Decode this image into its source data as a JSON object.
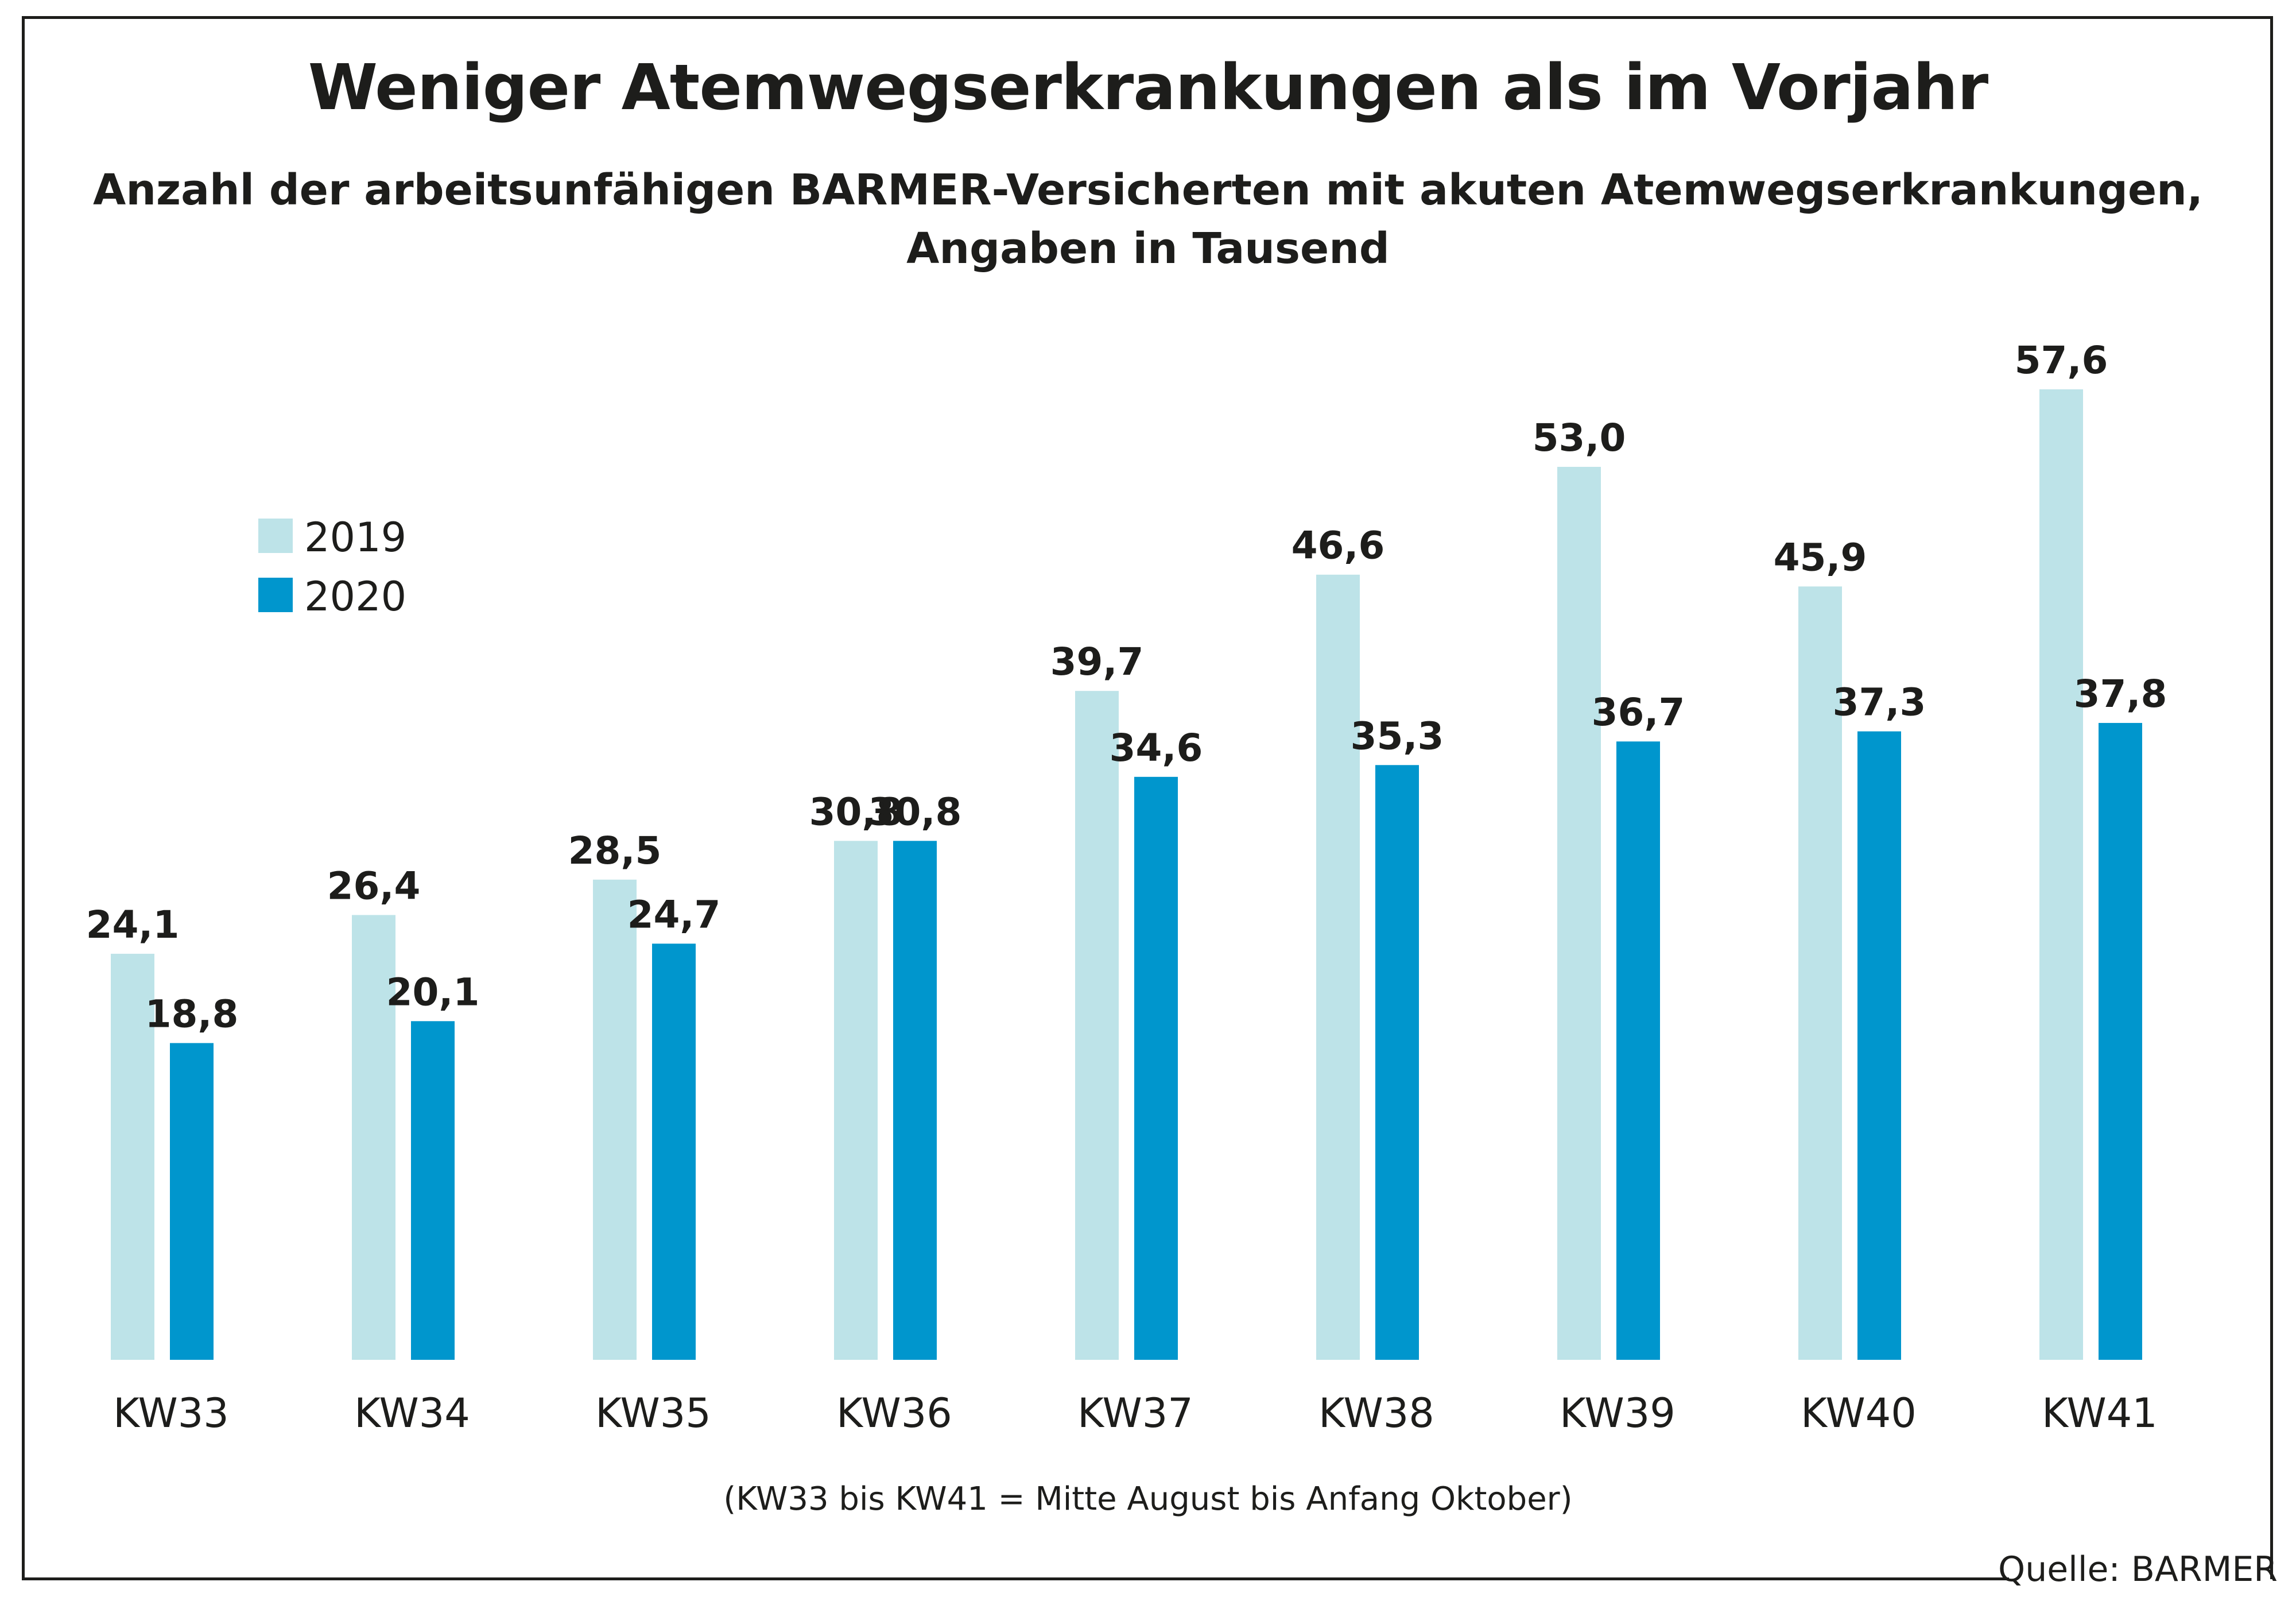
{
  "title": "Weniger Atemwegserkrankungen als im Vorjahr",
  "subtitle_line1": "Anzahl der arbeitsunfähigen BARMER-Versicherten mit akuten Atemwegserkrankungen,",
  "subtitle_line2": "Angaben in Tausend",
  "footnote": "(KW33 bis KW41 = Mitte August bis Anfang Oktober)",
  "source": "Quelle: BARMER",
  "colors": {
    "series_2019": "#bde3e8",
    "series_2020": "#0096cd",
    "text": "#1d1d1b"
  },
  "chart_data": {
    "type": "bar",
    "categories": [
      "KW33",
      "KW34",
      "KW35",
      "KW36",
      "KW37",
      "KW38",
      "KW39",
      "KW40",
      "KW41"
    ],
    "series": [
      {
        "name": "2019",
        "values": [
          24.1,
          26.4,
          28.5,
          30.8,
          39.7,
          46.6,
          53.0,
          45.9,
          57.6
        ],
        "labels": [
          "24,1",
          "26,4",
          "28,5",
          "30,8",
          "39,7",
          "46,6",
          "53,0",
          "45,9",
          "57,6"
        ]
      },
      {
        "name": "2020",
        "values": [
          18.8,
          20.1,
          24.7,
          30.8,
          34.6,
          35.3,
          36.7,
          37.3,
          37.8
        ],
        "labels": [
          "18,8",
          "20,1",
          "24,7",
          "30,8",
          "34,6",
          "35,3",
          "36,7",
          "37,3",
          "37,8"
        ]
      }
    ],
    "ylim": [
      0,
      57.6
    ],
    "grid": false,
    "legend_position": "top-left"
  }
}
